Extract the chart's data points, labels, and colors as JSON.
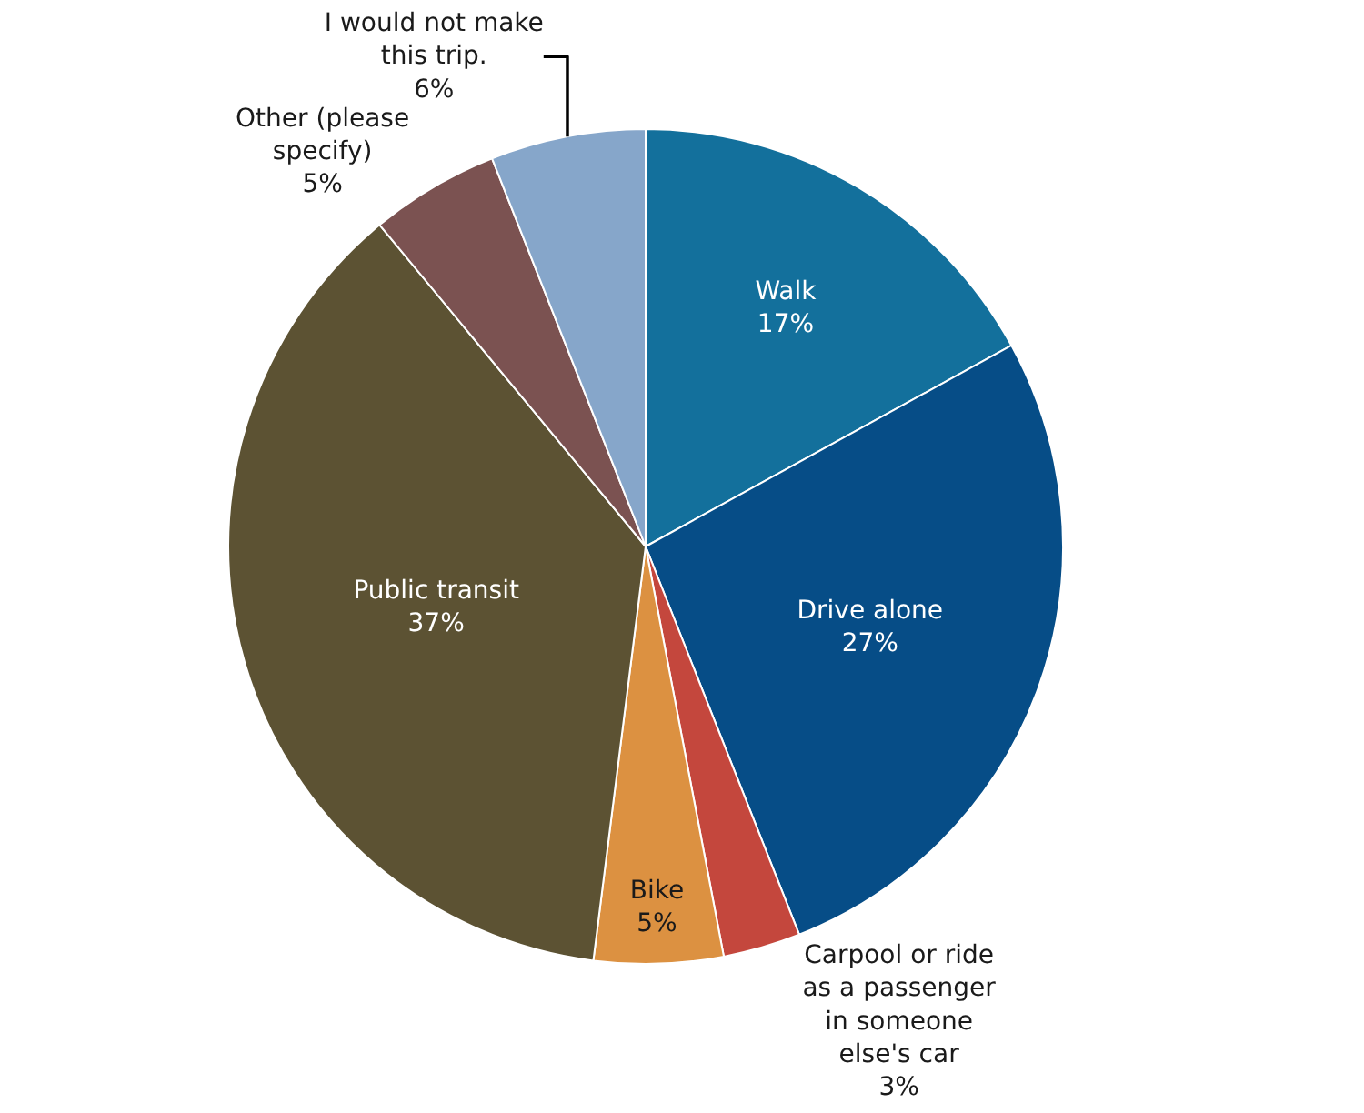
{
  "chart_data": {
    "type": "pie",
    "categories": [
      "Walk",
      "Drive alone",
      "Carpool or ride as a passenger in someone else's car",
      "Bike",
      "Public transit",
      "Other (please specify)",
      "I would not make this trip."
    ],
    "values": [
      17,
      27,
      3,
      5,
      37,
      5,
      6
    ],
    "colors": [
      "#13709c",
      "#064d87",
      "#c4473d",
      "#dc9141",
      "#5c5233",
      "#7b5251",
      "#86a6ca"
    ],
    "value_labels": [
      "17%",
      "27%",
      "3%",
      "5%",
      "37%",
      "5%",
      "6%"
    ],
    "legend": false
  }
}
